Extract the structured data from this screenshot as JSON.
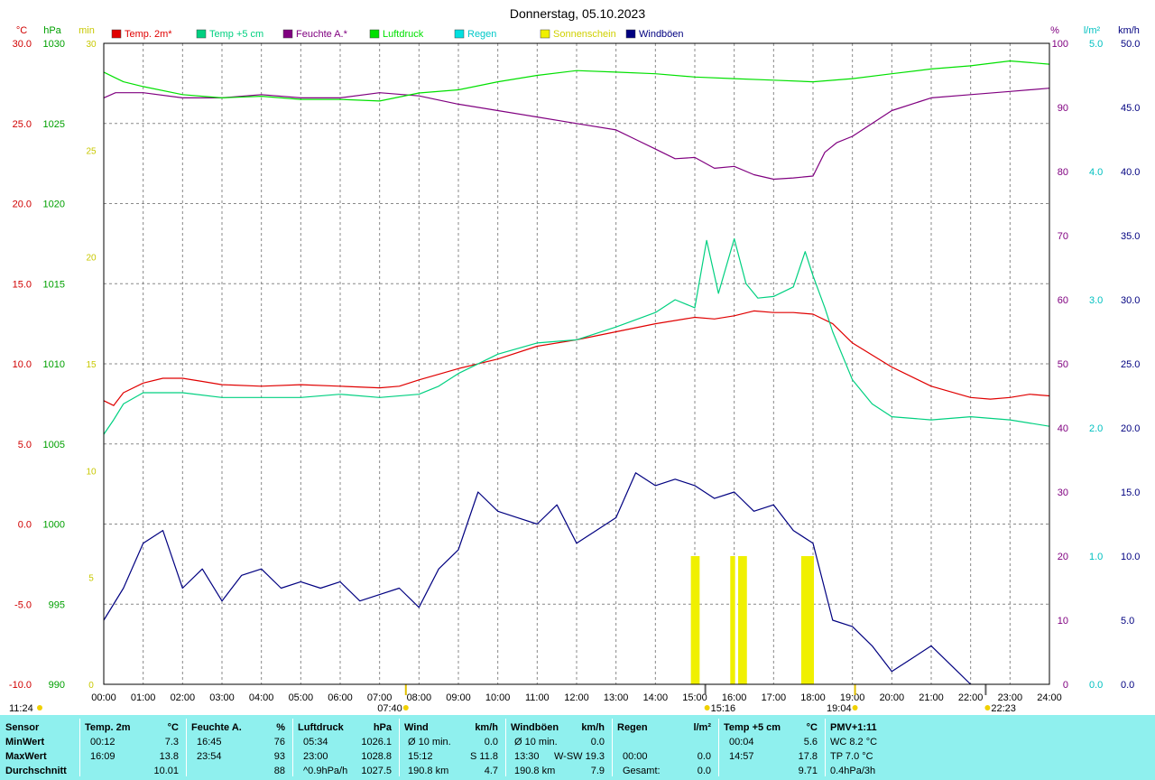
{
  "title": "Donnerstag, 05.10.2023",
  "axes": {
    "temp": {
      "unit": "°C",
      "color": "#d00000",
      "ticks": [
        "30.0",
        "25.0",
        "20.0",
        "15.0",
        "10.0",
        "5.0",
        "0.0",
        "-5.0",
        "-10.0"
      ]
    },
    "press": {
      "unit": "hPa",
      "color": "#00a000",
      "ticks": [
        "1030",
        "1025",
        "1020",
        "1015",
        "1010",
        "1005",
        "1000",
        "995",
        "990"
      ]
    },
    "min": {
      "unit": "min",
      "color": "#c8c800",
      "ticks": [
        "30",
        "25",
        "20",
        "15",
        "10",
        "5",
        "0"
      ]
    },
    "hum": {
      "unit": "%",
      "color": "#800080",
      "ticks": [
        "100",
        "90",
        "80",
        "70",
        "60",
        "50",
        "40",
        "30",
        "20",
        "10",
        "0"
      ]
    },
    "rain": {
      "unit": "l/m²",
      "color": "#00c0c0",
      "ticks": [
        "5.0",
        "4.0",
        "3.0",
        "2.0",
        "1.0",
        "0.0"
      ]
    },
    "wind": {
      "unit": "km/h",
      "color": "#000080",
      "ticks": [
        "50.0",
        "45.0",
        "40.0",
        "35.0",
        "30.0",
        "25.0",
        "20.0",
        "15.0",
        "10.0",
        "5.0",
        "0.0"
      ]
    },
    "x_ticks": [
      "00:00",
      "01:00",
      "02:00",
      "03:00",
      "04:00",
      "05:00",
      "06:00",
      "07:00",
      "08:00",
      "09:00",
      "10:00",
      "11:00",
      "12:00",
      "13:00",
      "14:00",
      "15:00",
      "16:00",
      "17:00",
      "18:00",
      "19:00",
      "20:00",
      "21:00",
      "22:00",
      "23:00",
      "24:00"
    ]
  },
  "legend": [
    {
      "label": "Temp. 2m*",
      "color": "#e00000"
    },
    {
      "label": "Temp +5 cm",
      "color": "#00d080"
    },
    {
      "label": "Feuchte A.*",
      "color": "#800080"
    },
    {
      "label": "Luftdruck",
      "color": "#00e000"
    },
    {
      "label": "Regen",
      "color": "#00e0e0"
    },
    {
      "label": "Sonnenschein",
      "color": "#f0f000"
    },
    {
      "label": "Windböen",
      "color": "#000080"
    }
  ],
  "markers": {
    "moonrise": "11:24",
    "sunrise": "07:40",
    "noon": "15:16",
    "sunset": "19:04",
    "moonset": "22:23"
  },
  "chart_data": {
    "type": "line",
    "x_unit": "hours",
    "xlim": [
      0,
      24
    ],
    "series": [
      {
        "name": "Temp. 2m*",
        "unit": "°C",
        "color": "#e00000",
        "x": [
          0,
          0.25,
          0.5,
          1,
          1.5,
          2,
          2.5,
          3,
          4,
          5,
          6,
          7,
          7.5,
          8,
          9,
          10,
          11,
          12,
          13,
          14,
          15,
          15.5,
          16,
          16.5,
          17,
          17.5,
          18,
          18.5,
          19,
          20,
          21,
          22,
          22.5,
          23,
          23.5,
          24
        ],
        "y": [
          7.7,
          7.4,
          8.2,
          8.8,
          9.1,
          9.1,
          8.9,
          8.7,
          8.6,
          8.7,
          8.6,
          8.5,
          8.6,
          9.0,
          9.7,
          10.3,
          11.1,
          11.5,
          12.0,
          12.5,
          12.9,
          12.8,
          13.0,
          13.3,
          13.2,
          13.2,
          13.1,
          12.5,
          11.3,
          9.8,
          8.6,
          7.9,
          7.8,
          7.9,
          8.1,
          8.0
        ]
      },
      {
        "name": "Temp +5 cm",
        "unit": "°C",
        "color": "#00d080",
        "x": [
          0,
          0.25,
          0.5,
          1,
          2,
          3,
          4,
          5,
          6,
          7,
          8,
          8.5,
          9,
          10,
          11,
          12,
          13,
          14,
          14.5,
          15,
          15.3,
          15.6,
          16,
          16.3,
          16.6,
          17,
          17.5,
          17.8,
          18,
          18.3,
          18.5,
          19,
          19.5,
          20,
          21,
          22,
          23,
          24
        ],
        "y": [
          5.6,
          6.5,
          7.5,
          8.2,
          8.2,
          7.9,
          7.9,
          7.9,
          8.1,
          7.9,
          8.1,
          8.6,
          9.4,
          10.6,
          11.3,
          11.5,
          12.3,
          13.2,
          14.0,
          13.5,
          17.7,
          14.4,
          17.8,
          15.0,
          14.1,
          14.2,
          14.8,
          17.0,
          15.5,
          13.5,
          12.0,
          9.0,
          7.5,
          6.7,
          6.5,
          6.7,
          6.5,
          6.1
        ]
      },
      {
        "name": "Feuchte A.*",
        "unit": "%",
        "color": "#800080",
        "x": [
          0,
          0.3,
          0.5,
          1,
          2,
          3,
          4,
          5,
          6,
          7,
          8,
          9,
          10,
          11,
          12,
          13,
          13.5,
          14,
          14.5,
          15,
          15.5,
          16,
          16.5,
          17,
          17.5,
          18,
          18.3,
          18.6,
          19,
          19.5,
          20,
          21,
          22,
          23,
          24
        ],
        "y": [
          91.5,
          92.3,
          92.3,
          92.3,
          91.5,
          91.5,
          92.0,
          91.5,
          91.5,
          92.3,
          91.8,
          90.5,
          89.5,
          88.5,
          87.5,
          86.5,
          85.0,
          83.5,
          82.0,
          82.2,
          80.5,
          80.8,
          79.5,
          78.8,
          79.0,
          79.3,
          83.0,
          84.5,
          85.5,
          87.5,
          89.5,
          91.5,
          92.0,
          92.5,
          93.0
        ]
      },
      {
        "name": "Luftdruck",
        "unit": "hPa",
        "color": "#00e000",
        "x": [
          0,
          0.5,
          1,
          2,
          3,
          4,
          5,
          6,
          7,
          8,
          9,
          10,
          11,
          12,
          13,
          14,
          15,
          16,
          17,
          18,
          19,
          20,
          21,
          22,
          23,
          24
        ],
        "y": [
          1028.2,
          1027.6,
          1027.3,
          1026.8,
          1026.6,
          1026.7,
          1026.5,
          1026.5,
          1026.4,
          1026.9,
          1027.1,
          1027.6,
          1028.0,
          1028.3,
          1028.2,
          1028.1,
          1027.9,
          1027.8,
          1027.7,
          1027.6,
          1027.8,
          1028.1,
          1028.4,
          1028.6,
          1028.9,
          1028.7
        ]
      },
      {
        "name": "Windböen",
        "unit": "km/h",
        "color": "#000080",
        "x": [
          0,
          0.5,
          1,
          1.5,
          2,
          2.5,
          3,
          3.5,
          4,
          4.5,
          5,
          5.5,
          6,
          6.5,
          7,
          7.5,
          8,
          8.5,
          9,
          9.5,
          10,
          10.5,
          11,
          11.5,
          12,
          12.5,
          13,
          13.5,
          14,
          14.5,
          15,
          15.5,
          16,
          16.5,
          17,
          17.5,
          18,
          18.5,
          19,
          19.5,
          20,
          20.5,
          21,
          21.5,
          22
        ],
        "y": [
          5.0,
          7.5,
          11.0,
          12.0,
          7.5,
          9.0,
          6.5,
          8.5,
          9.0,
          7.5,
          8.0,
          7.5,
          8.0,
          6.5,
          7.0,
          7.5,
          6.0,
          9.0,
          10.5,
          15.0,
          13.5,
          13.0,
          12.5,
          14.0,
          11.0,
          12.0,
          13.0,
          16.5,
          15.5,
          16.0,
          15.5,
          14.5,
          15.0,
          13.5,
          14.0,
          12.0,
          11.0,
          5.0,
          4.5,
          3.0,
          1.0,
          2.0,
          3.0,
          1.5,
          0.0
        ]
      },
      {
        "name": "Sonnenschein",
        "unit": "min",
        "color": "#f0f000",
        "x": [
          14.9,
          15.0,
          15.9,
          16.1,
          16.2,
          17.7,
          17.8,
          17.9
        ],
        "y": [
          6,
          6,
          6,
          6,
          6,
          6,
          6,
          6
        ]
      }
    ]
  },
  "stats": {
    "headers": {
      "sensor": "Sensor",
      "temp": "Temp. 2m",
      "temp_u": "°C",
      "hum": "Feuchte A.",
      "hum_u": "%",
      "press": "Luftdruck",
      "press_u": "hPa",
      "wind": "Wind",
      "wind_u": "km/h",
      "gust": "Windböen",
      "gust_u": "km/h",
      "rain": "Regen",
      "rain_u": "l/m²",
      "t5": "Temp +5 cm",
      "t5_u": "°C",
      "pmv": "PMV+1:11"
    },
    "rows": [
      {
        "label": "MinWert",
        "temp": [
          "00:12",
          "7.3"
        ],
        "hum": [
          "16:45",
          "76"
        ],
        "press": [
          "05:34",
          "1026.1"
        ],
        "wind": [
          "Ø 10 min.",
          "0.0"
        ],
        "gust": [
          "Ø 10 min.",
          "0.0"
        ],
        "rain": [
          "",
          ""
        ],
        "t5": [
          "00:04",
          "5.6"
        ],
        "pmv": "WC 8.2 °C"
      },
      {
        "label": "MaxWert",
        "temp": [
          "16:09",
          "13.8"
        ],
        "hum": [
          "23:54",
          "93"
        ],
        "press": [
          "23:00",
          "1028.8"
        ],
        "wind": [
          "15:12",
          "S 11.8"
        ],
        "gust": [
          "13:30",
          "W-SW 19.3"
        ],
        "rain": [
          "00:00",
          "0.0"
        ],
        "t5": [
          "14:57",
          "17.8"
        ],
        "pmv": "TP 7.0 °C"
      },
      {
        "label": "Durchschnitt",
        "temp": [
          "",
          "10.01"
        ],
        "hum": [
          "",
          "88"
        ],
        "press": [
          "^0.9hPa/h",
          "1027.5"
        ],
        "wind": [
          "190.8 km",
          "4.7"
        ],
        "gust": [
          "190.8 km",
          "7.9"
        ],
        "rain": [
          "Gesamt:",
          "0.0"
        ],
        "t5": [
          "",
          "9.71"
        ],
        "pmv": "0.4hPa/3h"
      }
    ]
  }
}
